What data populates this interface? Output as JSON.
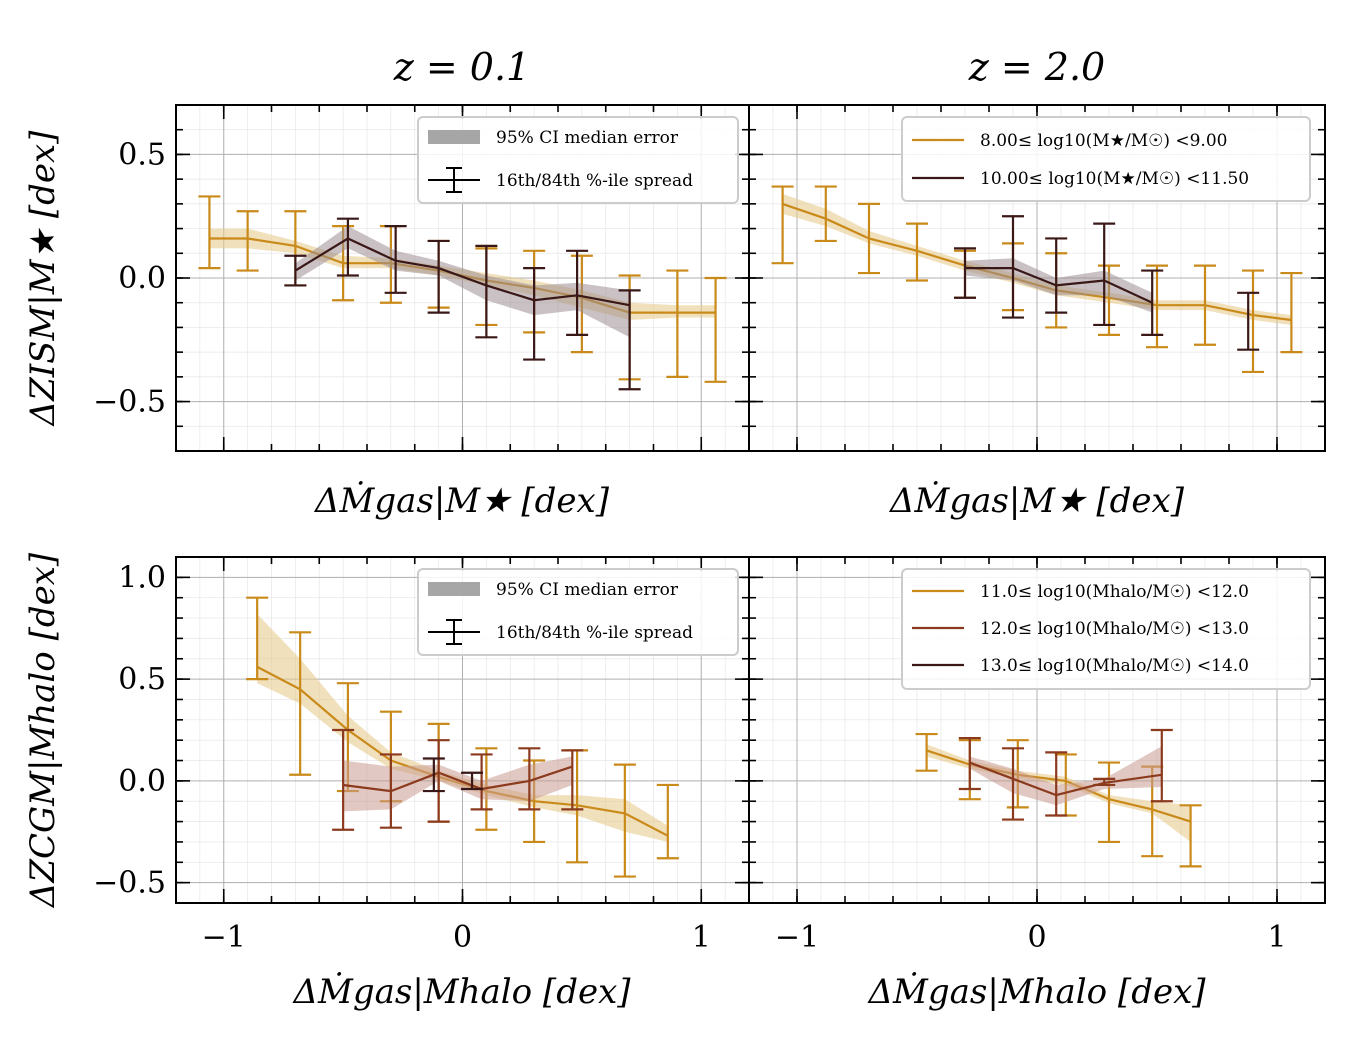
{
  "titles": [
    "z = 0.1",
    "z = 2.0"
  ],
  "axes_labels": {
    "top_x": "ΔṀgas|M★ [dex]",
    "bottom_x": "ΔṀgas|Mhalo [dex]",
    "top_y": "ΔZISM|M★ [dex]",
    "bottom_y": "ΔZCGM|Mhalo [dex]"
  },
  "legend_errors": {
    "ci": "95% CI median error",
    "spread": "16th/84th %-ile spread"
  },
  "legend_top_right": [
    "8.00≤ log10(M★/M☉) <9.00",
    "10.00≤ log10(M★/M☉) <11.50"
  ],
  "legend_bottom_right": [
    "11.0≤ log10(Mhalo/M☉) <12.0",
    "12.0≤ log10(Mhalo/M☉) <13.0",
    "13.0≤ log10(Mhalo/M☉) <14.0"
  ],
  "colors": {
    "gold": "#C98A1A",
    "gold_fill": "#E8CC90",
    "rust": "#8C3A1E",
    "rust_fill": "#C99B8F",
    "dark": "#3A1818",
    "dark_fill": "#9D8E92"
  },
  "chart_data": [
    {
      "type": "line",
      "panel": "top-left",
      "title": "z = 0.1",
      "xlim": [
        -1.2,
        1.2
      ],
      "ylim": [
        -0.7,
        0.7
      ],
      "xticks": [
        -1,
        0,
        1
      ],
      "yticks": [
        -0.5,
        0.0,
        0.5
      ],
      "yticklabels": [
        "−0.5",
        "0.0",
        "0.5"
      ],
      "series": [
        {
          "name": "8.00≤ log10(M★/M☉) <9.00",
          "color": "gold",
          "x": [
            -1.06,
            -0.9,
            -0.7,
            -0.5,
            -0.3,
            -0.1,
            0.1,
            0.3,
            0.5,
            0.7,
            0.9,
            1.06
          ],
          "y": [
            0.16,
            0.16,
            0.13,
            0.06,
            0.06,
            0.03,
            -0.01,
            -0.04,
            -0.08,
            -0.14,
            -0.14,
            -0.14
          ],
          "ci_lo": [
            0.12,
            0.12,
            0.1,
            0.04,
            0.04,
            0.01,
            -0.03,
            -0.07,
            -0.12,
            -0.17,
            -0.16,
            -0.16
          ],
          "ci_hi": [
            0.2,
            0.2,
            0.15,
            0.09,
            0.08,
            0.05,
            0.02,
            -0.01,
            -0.05,
            -0.1,
            -0.11,
            -0.11
          ],
          "err_lo": [
            0.04,
            0.03,
            -0.03,
            -0.09,
            -0.1,
            -0.12,
            -0.19,
            -0.22,
            -0.3,
            -0.41,
            -0.4,
            -0.42
          ],
          "err_hi": [
            0.33,
            0.27,
            0.27,
            0.21,
            0.21,
            0.15,
            0.12,
            0.11,
            0.09,
            0.01,
            0.03,
            0.0
          ]
        },
        {
          "name": "10.00≤ log10(M★/M☉) <11.50",
          "color": "dark",
          "x": [
            -0.7,
            -0.48,
            -0.28,
            -0.1,
            0.1,
            0.3,
            0.48,
            0.7
          ],
          "y": [
            0.03,
            0.16,
            0.07,
            0.04,
            -0.03,
            -0.09,
            -0.07,
            -0.11
          ],
          "ci_lo": [
            -0.01,
            0.12,
            0.03,
            0.01,
            -0.09,
            -0.15,
            -0.13,
            -0.24
          ],
          "ci_hi": [
            0.06,
            0.21,
            0.11,
            0.07,
            0.01,
            -0.03,
            -0.02,
            -0.05
          ],
          "err_lo": [
            -0.03,
            0.01,
            -0.06,
            -0.14,
            -0.24,
            -0.33,
            -0.23,
            -0.45
          ],
          "err_hi": [
            0.09,
            0.24,
            0.21,
            0.15,
            0.13,
            0.04,
            0.11,
            -0.05
          ]
        }
      ]
    },
    {
      "type": "line",
      "panel": "top-right",
      "title": "z = 2.0",
      "xlim": [
        -1.2,
        1.2
      ],
      "ylim": [
        -0.7,
        0.7
      ],
      "xticks": [
        -1,
        0,
        1
      ],
      "yticks": [
        -0.5,
        0.0,
        0.5
      ],
      "series": [
        {
          "name": "8.00≤ log10(M★/M☉) <9.00",
          "color": "gold",
          "x": [
            -1.06,
            -0.88,
            -0.7,
            -0.5,
            -0.3,
            -0.1,
            0.08,
            0.3,
            0.5,
            0.7,
            0.9,
            1.06
          ],
          "y": [
            0.3,
            0.24,
            0.16,
            0.11,
            0.05,
            0.0,
            -0.05,
            -0.08,
            -0.11,
            -0.11,
            -0.15,
            -0.17
          ],
          "ci_lo": [
            0.26,
            0.21,
            0.14,
            0.09,
            0.03,
            -0.02,
            -0.07,
            -0.1,
            -0.13,
            -0.13,
            -0.17,
            -0.19
          ],
          "ci_hi": [
            0.34,
            0.28,
            0.19,
            0.13,
            0.07,
            0.02,
            -0.03,
            -0.06,
            -0.09,
            -0.09,
            -0.13,
            -0.15
          ],
          "err_lo": [
            0.06,
            0.15,
            0.02,
            -0.01,
            -0.08,
            -0.13,
            -0.2,
            -0.23,
            -0.28,
            -0.27,
            -0.38,
            -0.3
          ],
          "err_hi": [
            0.37,
            0.37,
            0.3,
            0.22,
            0.11,
            0.14,
            0.1,
            0.05,
            0.05,
            0.05,
            0.03,
            0.02
          ]
        },
        {
          "name": "10.00≤ log10(M★/M☉) <11.50",
          "color": "dark",
          "x": [
            -0.3,
            -0.1,
            0.08,
            0.28,
            0.48
          ],
          "y": [
            0.04,
            0.04,
            -0.03,
            -0.01,
            -0.1
          ],
          "ci_lo": [
            0.01,
            -0.01,
            -0.07,
            -0.07,
            -0.14
          ],
          "ci_hi": [
            0.07,
            0.08,
            0.0,
            0.03,
            -0.06
          ],
          "err_lo": [
            -0.08,
            -0.16,
            -0.14,
            -0.19,
            -0.23
          ],
          "err_hi": [
            0.12,
            0.25,
            0.16,
            0.22,
            0.03
          ]
        },
        {
          "name": "dark high-end point",
          "color": "dark",
          "points_only": true,
          "x": [
            0.88
          ],
          "y": [
            -0.17
          ],
          "err_lo": [
            -0.29
          ],
          "err_hi": [
            -0.06
          ]
        }
      ]
    },
    {
      "type": "line",
      "panel": "bottom-left",
      "xlim": [
        -1.2,
        1.2
      ],
      "ylim": [
        -0.6,
        1.1
      ],
      "xticks": [
        -1,
        0,
        1
      ],
      "xticklabels": [
        "−1",
        "0",
        "1"
      ],
      "yticks": [
        -0.5,
        0.0,
        0.5,
        1.0
      ],
      "yticklabels": [
        "−0.5",
        "0.0",
        "0.5",
        "1.0"
      ],
      "series": [
        {
          "name": "11.0≤ log10(Mhalo/M☉) <12.0",
          "color": "gold",
          "x": [
            -0.86,
            -0.68,
            -0.48,
            -0.3,
            -0.1,
            0.1,
            0.3,
            0.48,
            0.68,
            0.86
          ],
          "y": [
            0.56,
            0.45,
            0.25,
            0.1,
            0.02,
            -0.05,
            -0.1,
            -0.12,
            -0.16,
            -0.27
          ],
          "ci_lo": [
            0.48,
            0.38,
            0.19,
            0.06,
            0.0,
            -0.07,
            -0.13,
            -0.17,
            -0.25,
            -0.3
          ],
          "ci_hi": [
            0.82,
            0.6,
            0.32,
            0.14,
            0.05,
            -0.02,
            -0.07,
            -0.07,
            -0.09,
            -0.22
          ],
          "err_lo": [
            0.5,
            0.03,
            -0.05,
            -0.1,
            -0.2,
            -0.24,
            -0.3,
            -0.4,
            -0.47,
            -0.38
          ],
          "err_hi": [
            0.9,
            0.73,
            0.48,
            0.34,
            0.28,
            0.16,
            0.1,
            0.15,
            0.08,
            -0.02
          ]
        },
        {
          "name": "12.0≤ log10(Mhalo/M☉) <13.0",
          "color": "rust",
          "x": [
            -0.5,
            -0.3,
            -0.1,
            0.08,
            0.28,
            0.46
          ],
          "y": [
            -0.02,
            -0.05,
            0.04,
            -0.04,
            0.0,
            0.07
          ],
          "ci_lo": [
            -0.15,
            -0.14,
            0.0,
            -0.09,
            -0.1,
            -0.02
          ],
          "ci_hi": [
            0.1,
            0.07,
            0.08,
            0.0,
            0.08,
            0.12
          ],
          "err_lo": [
            -0.24,
            -0.23,
            -0.2,
            -0.14,
            -0.14,
            -0.14
          ],
          "err_hi": [
            0.25,
            0.13,
            0.2,
            0.13,
            0.16,
            0.15
          ]
        },
        {
          "name": "13.0≤ log10(Mhalo/M☉) <14.0",
          "color": "dark",
          "points_only": true,
          "x": [
            -0.12,
            0.04
          ],
          "y": [
            0.03,
            0.0
          ],
          "err_lo": [
            -0.05,
            -0.04
          ],
          "err_hi": [
            0.11,
            0.04
          ]
        }
      ]
    },
    {
      "type": "line",
      "panel": "bottom-right",
      "xlim": [
        -1.2,
        1.2
      ],
      "ylim": [
        -0.6,
        1.1
      ],
      "xticks": [
        -1,
        0,
        1
      ],
      "xticklabels": [
        "−1",
        "0",
        "1"
      ],
      "yticks": [
        -0.5,
        0.0,
        0.5,
        1.0
      ],
      "series": [
        {
          "name": "11.0≤ log10(Mhalo/M☉) <12.0",
          "color": "gold",
          "x": [
            -0.46,
            -0.28,
            -0.08,
            0.12,
            0.3,
            0.48,
            0.64
          ],
          "y": [
            0.15,
            0.08,
            0.03,
            0.0,
            -0.09,
            -0.14,
            -0.2
          ],
          "ci_lo": [
            0.12,
            0.06,
            0.01,
            -0.02,
            -0.11,
            -0.16,
            -0.3
          ],
          "ci_hi": [
            0.18,
            0.1,
            0.05,
            0.02,
            -0.07,
            -0.1,
            -0.12
          ],
          "err_lo": [
            0.05,
            -0.09,
            -0.13,
            -0.17,
            -0.3,
            -0.37,
            -0.42
          ],
          "err_hi": [
            0.23,
            0.2,
            0.2,
            0.13,
            0.09,
            0.07,
            -0.12
          ]
        },
        {
          "name": "12.0≤ log10(Mhalo/M☉) <13.0",
          "color": "rust",
          "x": [
            -0.28,
            -0.1,
            0.08,
            0.28,
            0.52
          ],
          "y": [
            0.09,
            0.01,
            -0.07,
            -0.01,
            0.03
          ],
          "ci_lo": [
            0.06,
            -0.06,
            -0.12,
            -0.04,
            -0.03
          ],
          "ci_hi": [
            0.12,
            0.06,
            -0.02,
            0.01,
            0.17
          ],
          "err_lo": [
            -0.04,
            -0.19,
            -0.17,
            -0.02,
            -0.1
          ],
          "err_hi": [
            0.21,
            0.16,
            0.14,
            0.01,
            0.25
          ]
        }
      ]
    }
  ]
}
